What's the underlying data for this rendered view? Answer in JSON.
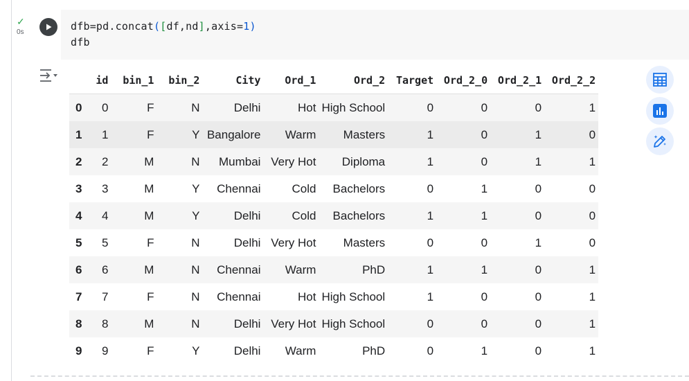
{
  "cell": {
    "exec_check": "✓",
    "exec_time": "0s",
    "code_line1_parts": {
      "a": "dfb=pd.concat",
      "p_open": "(",
      "b_open": "[",
      "args": "df,nd",
      "b_close": "]",
      "comma_axis": ",axis=",
      "num": "1",
      "p_close": ")"
    },
    "code_line2": "dfb"
  },
  "table": {
    "columns": [
      "",
      "id",
      "bin_1",
      "bin_2",
      "City",
      "Ord_1",
      "Ord_2",
      "Target",
      "Ord_2_0",
      "Ord_2_1",
      "Ord_2_2"
    ],
    "rows": [
      [
        "0",
        "0",
        "F",
        "N",
        "Delhi",
        "Hot",
        "High School",
        "0",
        "0",
        "0",
        "1"
      ],
      [
        "1",
        "1",
        "F",
        "Y",
        "Bangalore",
        "Warm",
        "Masters",
        "1",
        "0",
        "1",
        "0"
      ],
      [
        "2",
        "2",
        "M",
        "N",
        "Mumbai",
        "Very Hot",
        "Diploma",
        "1",
        "0",
        "1",
        "1"
      ],
      [
        "3",
        "3",
        "M",
        "Y",
        "Chennai",
        "Cold",
        "Bachelors",
        "0",
        "1",
        "0",
        "0"
      ],
      [
        "4",
        "4",
        "M",
        "Y",
        "Delhi",
        "Cold",
        "Bachelors",
        "1",
        "1",
        "0",
        "0"
      ],
      [
        "5",
        "5",
        "F",
        "N",
        "Delhi",
        "Very Hot",
        "Masters",
        "0",
        "0",
        "1",
        "0"
      ],
      [
        "6",
        "6",
        "M",
        "N",
        "Chennai",
        "Warm",
        "PhD",
        "1",
        "1",
        "0",
        "1"
      ],
      [
        "7",
        "7",
        "F",
        "N",
        "Chennai",
        "Hot",
        "High School",
        "1",
        "0",
        "0",
        "1"
      ],
      [
        "8",
        "8",
        "M",
        "N",
        "Delhi",
        "Very Hot",
        "High School",
        "0",
        "0",
        "0",
        "1"
      ],
      [
        "9",
        "9",
        "F",
        "Y",
        "Delhi",
        "Warm",
        "PhD",
        "0",
        "1",
        "0",
        "1"
      ]
    ],
    "highlighted_row": 1
  },
  "side_buttons": [
    {
      "name": "convert-to-interactive-table-icon"
    },
    {
      "name": "suggest-charts-icon"
    },
    {
      "name": "generate-code-icon"
    }
  ],
  "colors": {
    "accent": "#1a73e8",
    "check": "#34a853"
  }
}
